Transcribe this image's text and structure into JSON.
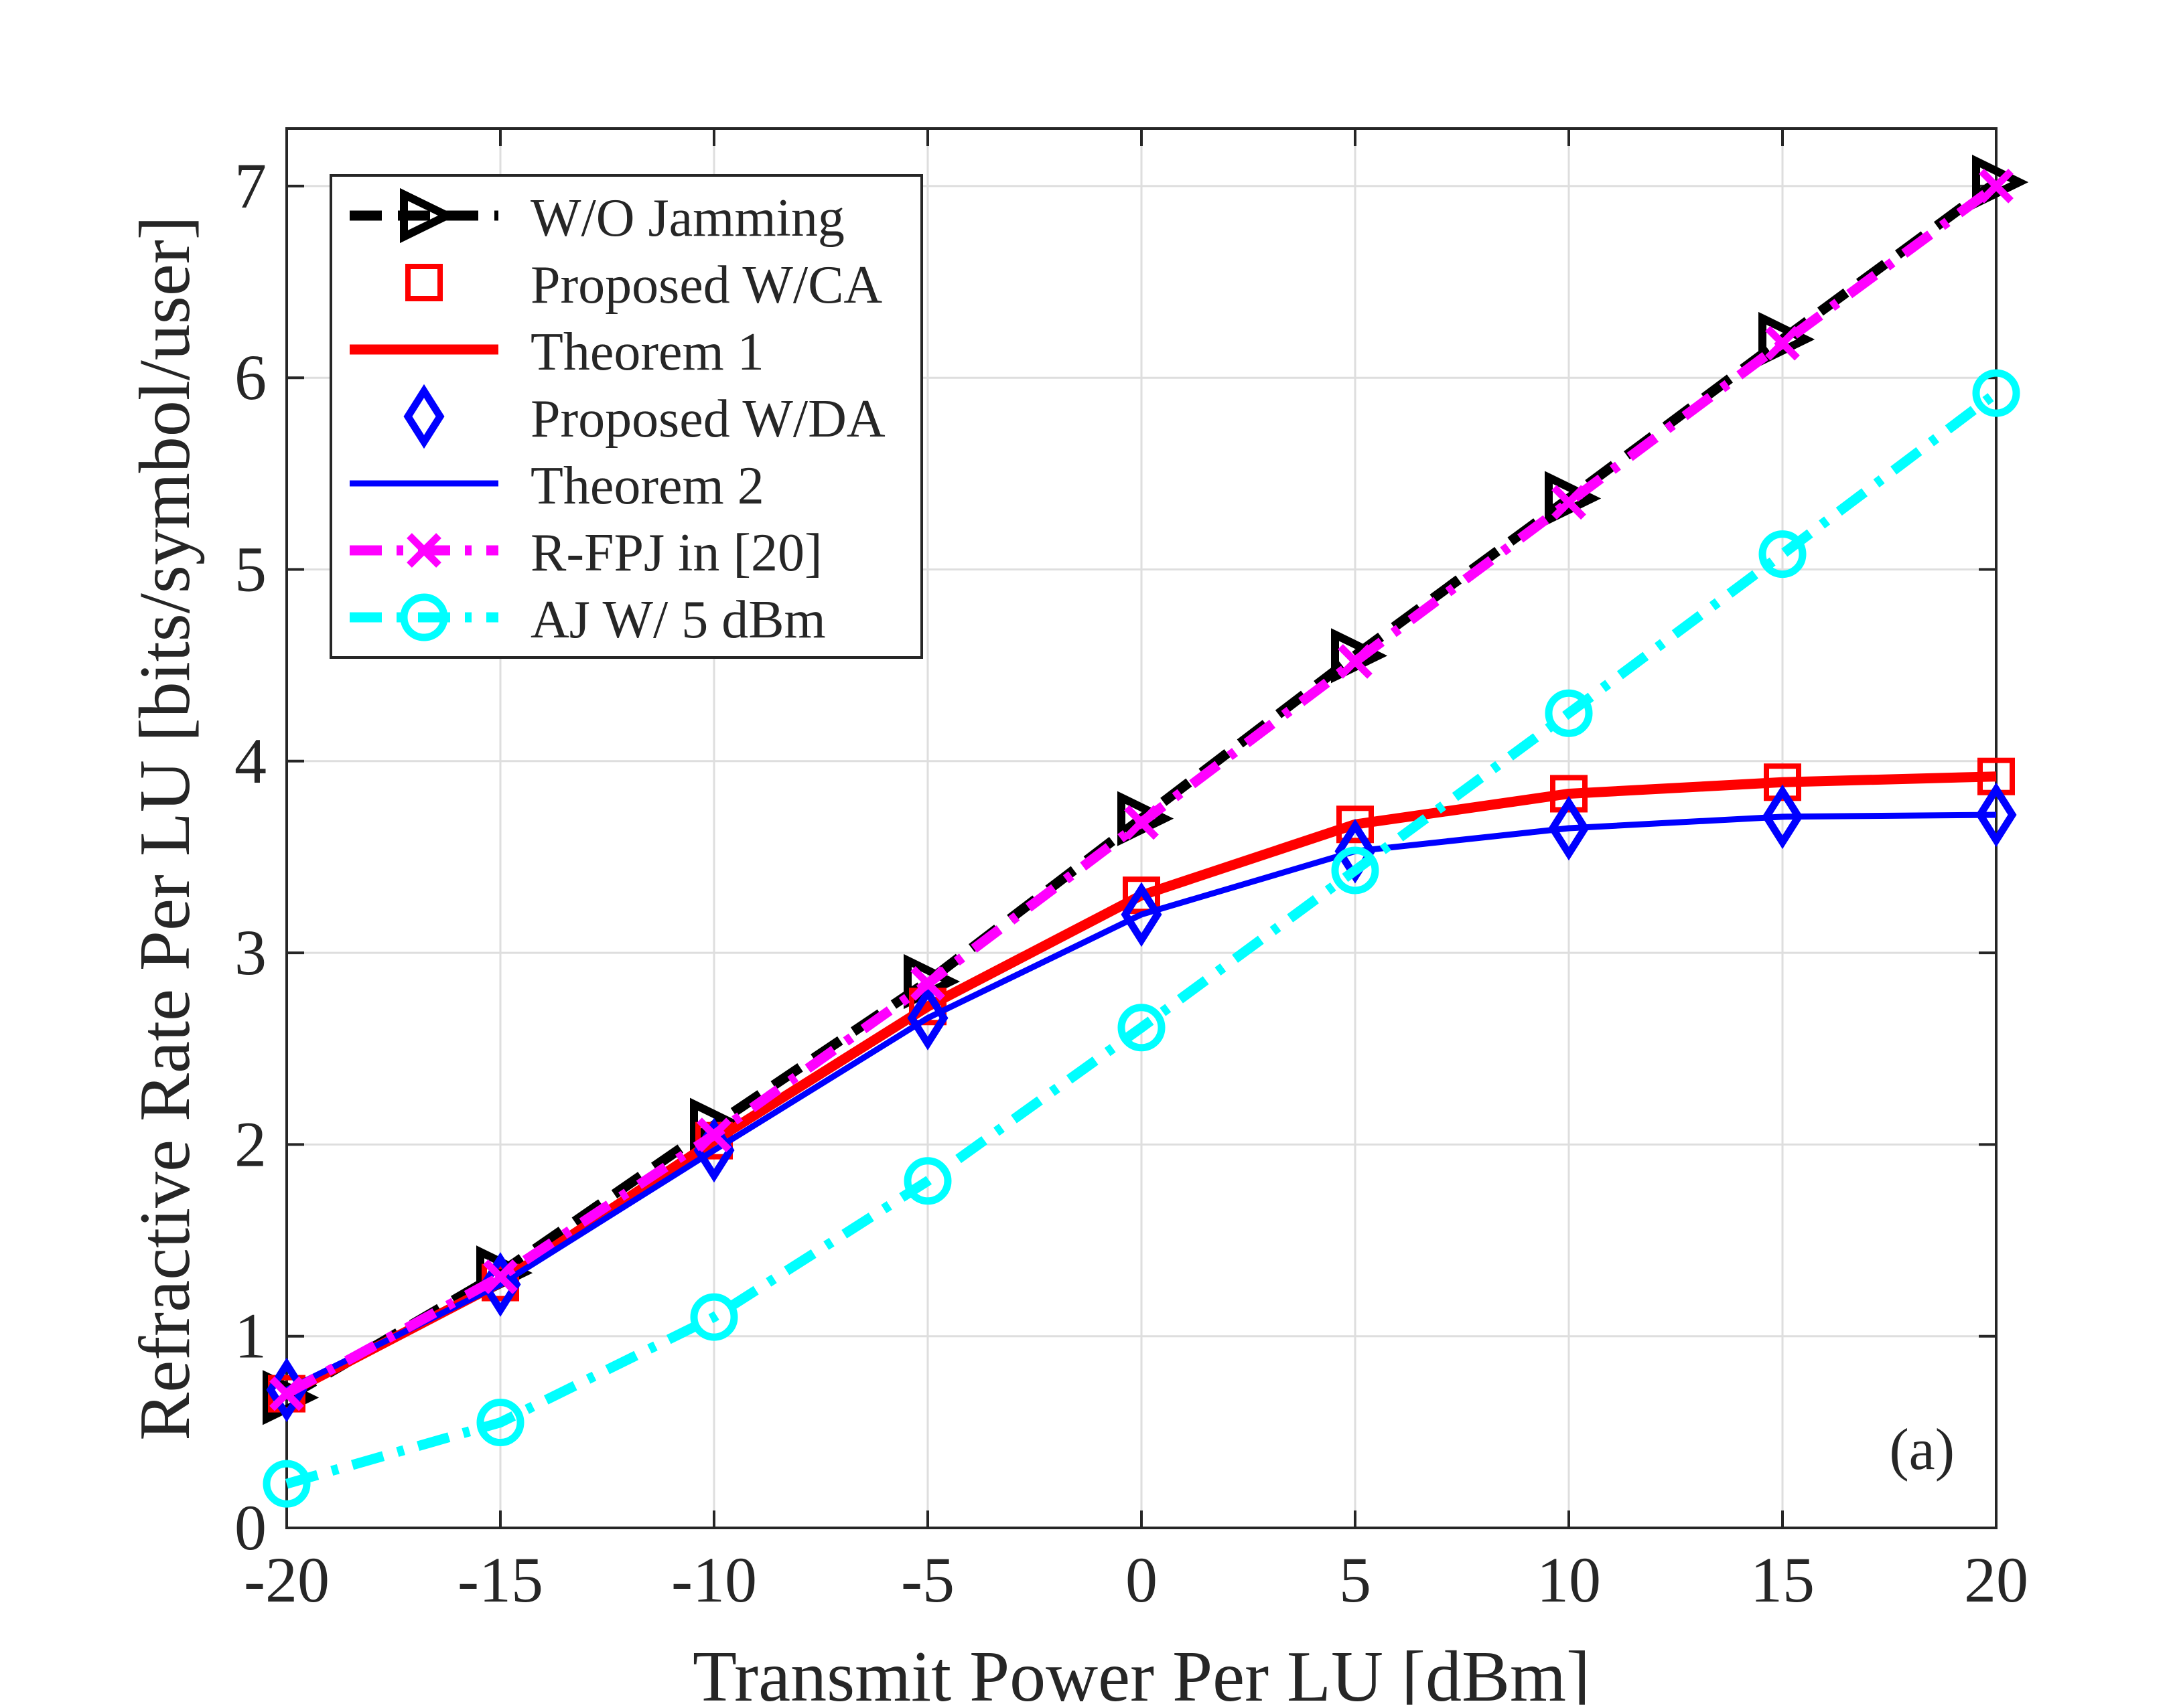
{
  "chart_data": {
    "type": "line",
    "title": "",
    "xlabel": "Transmit Power Per LU [dBm]",
    "ylabel": "Refractive Rate Per LU [bits/symbol/user]",
    "annotation": "(a)",
    "x": [
      -20,
      -15,
      -10,
      -5,
      0,
      5,
      10,
      15,
      20
    ],
    "xlim": [
      -20,
      20
    ],
    "ylim": [
      0,
      7.3
    ],
    "xticks": [
      "-20",
      "-15",
      "-10",
      "-5",
      "0",
      "5",
      "10",
      "15",
      "20"
    ],
    "yticks": [
      "0",
      "1",
      "2",
      "3",
      "4",
      "5",
      "6",
      "7"
    ],
    "grid": true,
    "legend_position": "top-left",
    "series": [
      {
        "name": "W/O Jamming",
        "values": [
          0.68,
          1.33,
          2.1,
          2.85,
          3.7,
          4.55,
          5.37,
          6.2,
          7.02
        ],
        "color": "#000000",
        "line": "dash",
        "marker": "triangle-right",
        "width": "thick"
      },
      {
        "name": "Proposed W/CA",
        "values": [
          0.7,
          1.28,
          2.02,
          2.72,
          3.3,
          3.67,
          3.83,
          3.89,
          3.92
        ],
        "color": "#ff0000",
        "line": "none",
        "marker": "square"
      },
      {
        "name": "Theorem 1",
        "values": [
          0.7,
          1.28,
          2.02,
          2.72,
          3.3,
          3.67,
          3.83,
          3.89,
          3.92
        ],
        "color": "#ff0000",
        "line": "solid",
        "marker": "none",
        "width": "thick"
      },
      {
        "name": "Proposed W/DA",
        "values": [
          0.72,
          1.27,
          1.97,
          2.66,
          3.2,
          3.53,
          3.65,
          3.71,
          3.72
        ],
        "color": "#0000ff",
        "line": "none",
        "marker": "diamond"
      },
      {
        "name": "Theorem 2",
        "values": [
          0.72,
          1.27,
          1.97,
          2.66,
          3.2,
          3.53,
          3.65,
          3.71,
          3.72
        ],
        "color": "#0000ff",
        "line": "solid",
        "marker": "none",
        "width": "medium"
      },
      {
        "name": "R-FPJ in [20]",
        "values": [
          0.7,
          1.31,
          2.05,
          2.84,
          3.68,
          4.52,
          5.35,
          6.18,
          7.0
        ],
        "color": "#ff00ff",
        "line": "dashdot",
        "marker": "x",
        "width": "thick"
      },
      {
        "name": "AJ W/ 5 dBm",
        "values": [
          0.23,
          0.55,
          1.1,
          1.81,
          2.61,
          3.43,
          4.25,
          5.08,
          5.92
        ],
        "color": "#00ffff",
        "line": "dashdot",
        "marker": "circle",
        "width": "thick"
      }
    ]
  }
}
